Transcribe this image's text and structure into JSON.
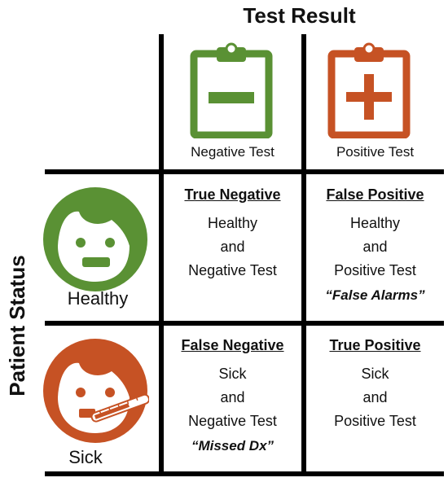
{
  "title": "Test Result",
  "y_axis_label": "Patient Status",
  "columns": [
    {
      "label": "Negative Test",
      "icon": "clipboard-minus-icon",
      "color": "#5a9134"
    },
    {
      "label": "Positive Test",
      "icon": "clipboard-plus-icon",
      "color": "#c65224"
    }
  ],
  "rows": [
    {
      "label": "Healthy",
      "icon": "smiling-face-icon",
      "color": "#5a9134"
    },
    {
      "label": "Sick",
      "icon": "sick-face-thermometer-icon",
      "color": "#c65224"
    }
  ],
  "cells": {
    "true_negative": {
      "heading": "True Negative",
      "lines": [
        "Healthy",
        "and",
        "Negative Test"
      ],
      "note": ""
    },
    "false_positive": {
      "heading": "False Positive",
      "lines": [
        "Healthy",
        "and",
        "Positive Test"
      ],
      "note": "“False Alarms”"
    },
    "false_negative": {
      "heading": "False Negative",
      "lines": [
        "Sick",
        "and",
        "Negative Test"
      ],
      "note": "“Missed Dx”"
    },
    "true_positive": {
      "heading": "True Positive",
      "lines": [
        "Sick",
        "and",
        "Positive Test"
      ],
      "note": ""
    }
  }
}
